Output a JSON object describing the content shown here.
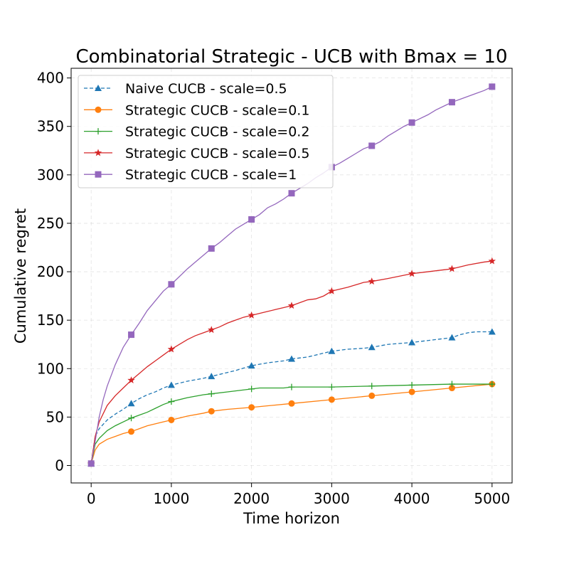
{
  "chart_data": {
    "type": "line",
    "title": "Combinatorial Strategic - UCB with Bmax = 10",
    "xlabel": "Time horizon",
    "ylabel": "Cumulative regret",
    "xlim": [
      -250,
      5250
    ],
    "ylim": [
      -18,
      410
    ],
    "xticks": [
      0,
      1000,
      2000,
      3000,
      4000,
      5000
    ],
    "yticks": [
      0,
      50,
      100,
      150,
      200,
      250,
      300,
      350,
      400
    ],
    "grid": true,
    "legend_position": "top-left",
    "series": [
      {
        "name": "Naive CUCB - scale=0.5",
        "color": "#1f77b4",
        "dash": "dashed",
        "marker": "triangle",
        "x": [
          0,
          50,
          100,
          200,
          300,
          400,
          500,
          600,
          700,
          800,
          900,
          1000,
          1200,
          1400,
          1500,
          1700,
          1800,
          2000,
          2200,
          2400,
          2500,
          2700,
          2800,
          3000,
          3200,
          3400,
          3500,
          3700,
          4000,
          4200,
          4500,
          4600,
          4700,
          4800,
          5000
        ],
        "y": [
          2,
          30,
          38,
          47,
          53,
          58,
          64,
          69,
          73,
          76,
          80,
          83,
          87,
          90,
          92,
          96,
          98,
          103,
          106,
          108,
          110,
          112,
          114,
          118,
          120,
          121,
          122,
          125,
          127,
          129,
          132,
          135,
          137,
          138,
          138
        ]
      },
      {
        "name": "Strategic CUCB - scale=0.1",
        "color": "#ff7f0e",
        "dash": "solid",
        "marker": "circle",
        "x": [
          0,
          50,
          100,
          200,
          300,
          400,
          500,
          600,
          700,
          800,
          900,
          1000,
          1200,
          1400,
          1500,
          1700,
          2000,
          2500,
          3000,
          3500,
          4000,
          4500,
          5000
        ],
        "y": [
          2,
          16,
          22,
          27,
          30,
          33,
          35,
          38,
          41,
          43,
          45,
          47,
          51,
          54,
          56,
          58,
          60,
          64,
          68,
          72,
          76,
          80,
          84
        ]
      },
      {
        "name": "Strategic CUCB - scale=0.2",
        "color": "#2ca02c",
        "dash": "solid",
        "marker": "plus",
        "x": [
          0,
          50,
          100,
          200,
          300,
          400,
          500,
          600,
          700,
          800,
          900,
          1000,
          1200,
          1400,
          1500,
          1700,
          2000,
          2100,
          2200,
          2400,
          2500,
          3000,
          3500,
          4000,
          4500,
          5000
        ],
        "y": [
          2,
          22,
          28,
          36,
          41,
          45,
          49,
          52,
          55,
          59,
          63,
          66,
          70,
          73,
          74,
          76,
          79,
          80,
          80,
          80,
          81,
          81,
          82,
          83,
          84,
          84
        ]
      },
      {
        "name": "Strategic CUCB - scale=0.5",
        "color": "#d62728",
        "dash": "solid",
        "marker": "star",
        "x": [
          0,
          50,
          100,
          200,
          300,
          400,
          500,
          600,
          700,
          800,
          900,
          1000,
          1100,
          1200,
          1300,
          1400,
          1500,
          1600,
          1700,
          1800,
          1900,
          2000,
          2100,
          2200,
          2300,
          2400,
          2500,
          2600,
          2700,
          2800,
          2900,
          3000,
          3200,
          3400,
          3500,
          3700,
          4000,
          4200,
          4400,
          4500,
          4700,
          4900,
          5000
        ],
        "y": [
          2,
          30,
          45,
          62,
          72,
          80,
          88,
          95,
          102,
          108,
          114,
          120,
          125,
          130,
          134,
          137,
          140,
          143,
          147,
          150,
          153,
          155,
          157,
          159,
          161,
          163,
          165,
          168,
          171,
          172,
          175,
          180,
          184,
          189,
          190,
          193,
          198,
          200,
          202,
          203,
          207,
          210,
          211
        ]
      },
      {
        "name": "Strategic CUCB - scale=1",
        "color": "#9467bd",
        "dash": "solid",
        "marker": "square",
        "x": [
          0,
          50,
          100,
          150,
          200,
          300,
          400,
          500,
          600,
          700,
          800,
          900,
          1000,
          1100,
          1200,
          1300,
          1400,
          1500,
          1600,
          1700,
          1800,
          1900,
          2000,
          2100,
          2200,
          2300,
          2400,
          2500,
          2600,
          2700,
          2800,
          2900,
          3000,
          3100,
          3200,
          3300,
          3400,
          3500,
          3600,
          3700,
          3800,
          3900,
          4000,
          4100,
          4200,
          4300,
          4400,
          4500,
          4600,
          4700,
          4800,
          4900,
          5000
        ],
        "y": [
          2,
          25,
          50,
          68,
          82,
          104,
          122,
          135,
          147,
          160,
          170,
          180,
          187,
          195,
          203,
          210,
          217,
          224,
          230,
          237,
          244,
          249,
          254,
          259,
          266,
          270,
          275,
          281,
          286,
          291,
          297,
          302,
          308,
          312,
          317,
          322,
          327,
          330,
          334,
          340,
          345,
          350,
          354,
          358,
          362,
          367,
          371,
          375,
          378,
          381,
          384,
          387,
          391
        ]
      }
    ]
  }
}
